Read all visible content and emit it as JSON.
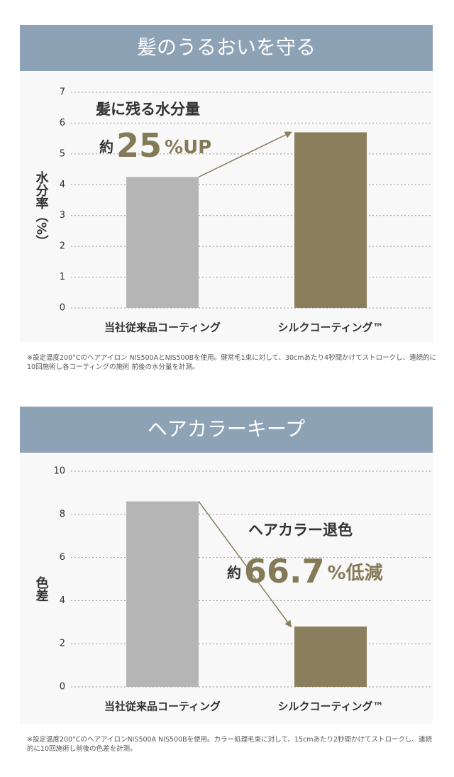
{
  "chart_data": [
    {
      "type": "bar",
      "title": "髪のうるおいを守る",
      "ylabel": "水分率（%）",
      "categories": [
        "当社従来品コーティング",
        "シルクコーティング™"
      ],
      "values": [
        4.25,
        5.7
      ],
      "colors": [
        "#b5b5b5",
        "#8a7e5c"
      ],
      "ylim": [
        0,
        7
      ],
      "yticks": [
        0,
        1,
        2,
        3,
        4,
        5,
        6,
        7
      ],
      "grid": true,
      "annotation_title": "髪に残る水分量",
      "annotation_parts": [
        "約",
        "25",
        "%UP"
      ],
      "note": "※設定温度200°Cのヘアアイロン NIS500AとNIS500Bを使用。健常毛1束に対して、30cmあたり4秒間かけてストロークし、連続的に10回施術し各コーティングの施術 前後の水分量を計測。"
    },
    {
      "type": "bar",
      "title": "ヘアカラーキープ",
      "ylabel": "色差",
      "categories": [
        "当社従来品コーティング",
        "シルクコーティング™"
      ],
      "values": [
        8.6,
        2.8
      ],
      "colors": [
        "#b5b5b5",
        "#8a7e5c"
      ],
      "ylim": [
        0,
        10
      ],
      "yticks": [
        0,
        2,
        4,
        6,
        8,
        10
      ],
      "grid": true,
      "annotation_title": "ヘアカラー退色",
      "annotation_parts": [
        "約",
        "66.7",
        "%低減"
      ],
      "note": "※設定温度200°CのヘアアイロンNIS500A NIS500Bを使用。カラー処理毛束に対して、15cmあたり2秒間かけてストロークし、連続的に10回施術し前後の色差を計測。"
    }
  ]
}
